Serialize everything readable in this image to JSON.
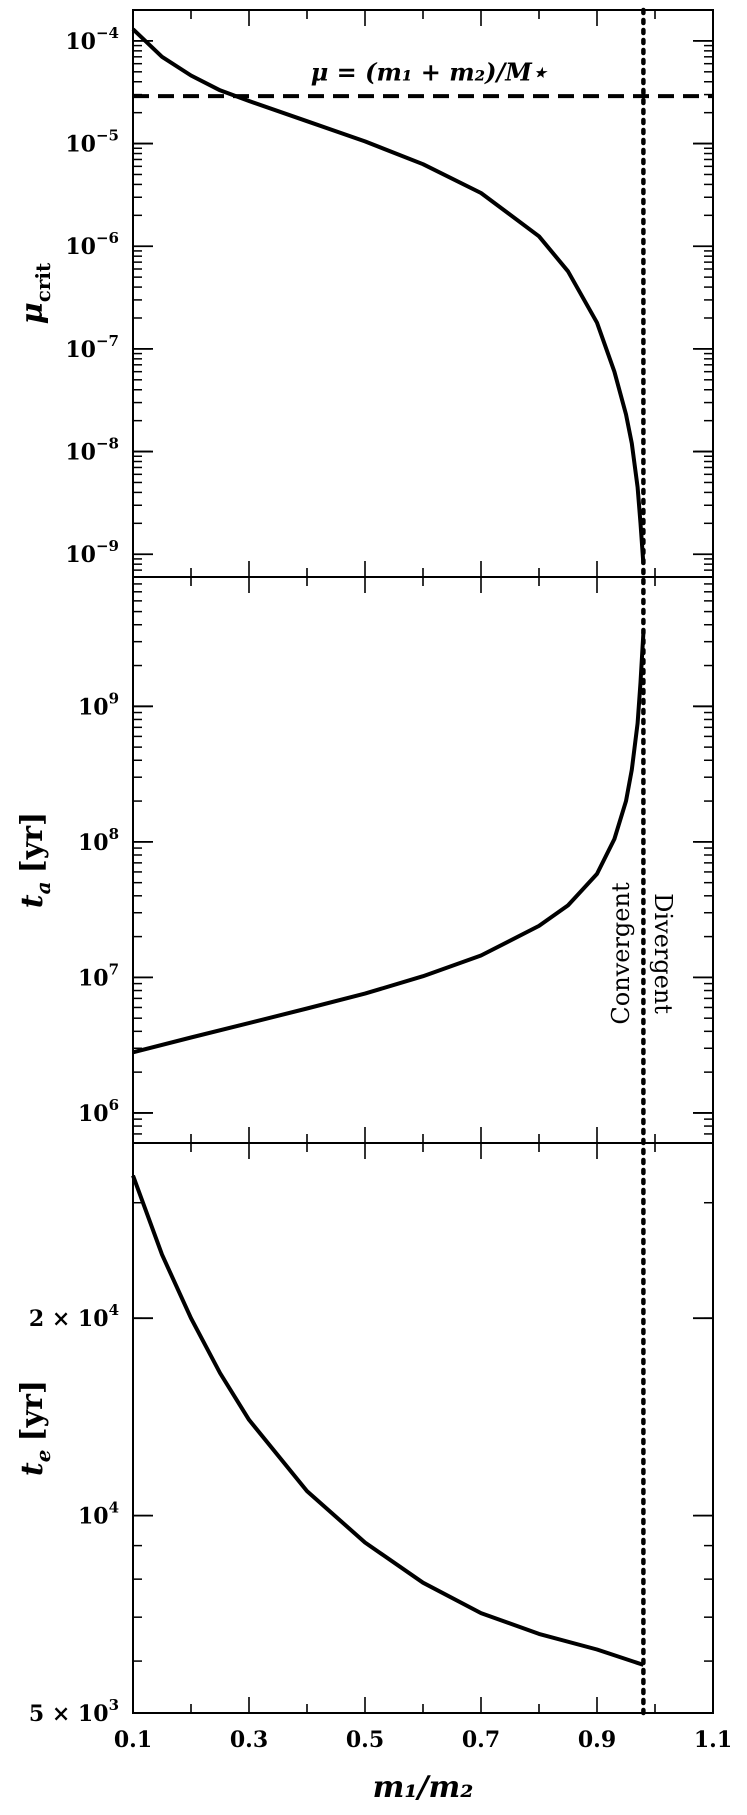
{
  "chart_data": [
    {
      "panel": "top",
      "type": "line",
      "ylabel": "μ",
      "ylabel_sub": "crit",
      "yscale": "log",
      "ylim": [
        6e-10,
        0.0002
      ],
      "yticks": [
        {
          "value": 0.0001,
          "base": "10",
          "exp": "−4"
        },
        {
          "value": 1e-05,
          "base": "10",
          "exp": "−5"
        },
        {
          "value": 1e-06,
          "base": "10",
          "exp": "−6"
        },
        {
          "value": 1e-07,
          "base": "10",
          "exp": "−7"
        },
        {
          "value": 1e-08,
          "base": "10",
          "exp": "−8"
        },
        {
          "value": 1e-09,
          "base": "10",
          "exp": "−9"
        }
      ],
      "series": [
        {
          "style": "solid",
          "x": [
            0.1,
            0.15,
            0.2,
            0.25,
            0.3,
            0.4,
            0.5,
            0.6,
            0.7,
            0.8,
            0.85,
            0.9,
            0.93,
            0.95,
            0.96,
            0.97,
            0.975,
            0.98
          ],
          "y": [
            0.00013,
            7e-05,
            4.6e-05,
            3.3e-05,
            2.6e-05,
            1.65e-05,
            1.05e-05,
            6.3e-06,
            3.3e-06,
            1.25e-06,
            5.7e-07,
            1.8e-07,
            6e-08,
            2.3e-08,
            1.2e-08,
            4.5e-09,
            2e-09,
            8e-10
          ]
        },
        {
          "style": "dashed",
          "x": [
            0.1,
            1.1
          ],
          "y": [
            2.9e-05,
            2.9e-05
          ]
        }
      ],
      "annotations": [
        {
          "text": "μ = (m₁ + m₂)/M⋆",
          "x": 0.61,
          "y": 4.1e-05
        }
      ]
    },
    {
      "panel": "middle",
      "type": "line",
      "ylabel": "t",
      "ylabel_sub": "a",
      "ylabel_unit": "[yr]",
      "yscale": "log",
      "ylim": [
        600000.0,
        9000000000.0
      ],
      "yticks": [
        {
          "value": 1000000.0,
          "base": "10",
          "exp": "6"
        },
        {
          "value": 10000000.0,
          "base": "10",
          "exp": "7"
        },
        {
          "value": 100000000.0,
          "base": "10",
          "exp": "8"
        },
        {
          "value": 1000000000.0,
          "base": "10",
          "exp": "9"
        }
      ],
      "series": [
        {
          "style": "solid",
          "x": [
            0.1,
            0.2,
            0.3,
            0.4,
            0.5,
            0.6,
            0.7,
            0.8,
            0.85,
            0.9,
            0.93,
            0.95,
            0.96,
            0.97,
            0.975,
            0.98
          ],
          "y": [
            2800000.0,
            3600000.0,
            4600000.0,
            5900000.0,
            7600000.0,
            10200000.0,
            14500000.0,
            24000000.0,
            34000000.0,
            58000000.0,
            105000000.0,
            200000000.0,
            340000000.0,
            750000000.0,
            1500000000.0,
            3500000000.0
          ]
        }
      ],
      "annotations": [
        {
          "text": "Convergent",
          "x": 0.955,
          "y": 15000000.0,
          "rotate": -90
        },
        {
          "text": "Divergent",
          "x": 1.0,
          "y": 15000000.0,
          "rotate": 90
        }
      ]
    },
    {
      "panel": "bottom",
      "type": "line",
      "ylabel": "t",
      "ylabel_sub": "e",
      "ylabel_unit": "[yr]",
      "xlabel": "m₁/m₂",
      "yscale": "log",
      "ylim": [
        5000,
        37000
      ],
      "yticks": [
        {
          "value": 20000,
          "base": "2 × 10",
          "exp": "4"
        },
        {
          "value": 10000,
          "base": "10",
          "exp": "4"
        },
        {
          "value": 5000,
          "base": "5 × 10",
          "exp": "3"
        }
      ],
      "xlim": [
        0.1,
        1.1
      ],
      "xticks": [
        "0.1",
        "0.3",
        "0.5",
        "0.7",
        "0.9",
        "1.1"
      ],
      "series": [
        {
          "style": "solid",
          "x": [
            0.1,
            0.15,
            0.2,
            0.25,
            0.3,
            0.4,
            0.5,
            0.6,
            0.7,
            0.8,
            0.9,
            0.98
          ],
          "y": [
            33000,
            25000,
            20000,
            16500,
            14000,
            10900,
            9100,
            7900,
            7100,
            6600,
            6250,
            5920
          ]
        }
      ]
    }
  ],
  "vline": {
    "x": 0.98,
    "style": "dotted"
  }
}
